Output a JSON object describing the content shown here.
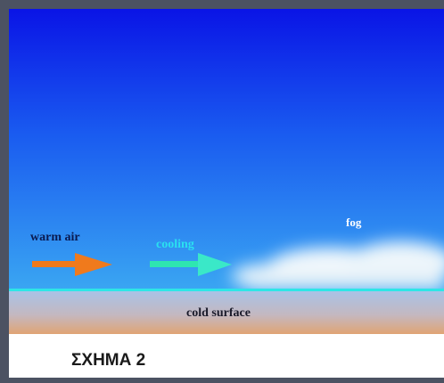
{
  "labels": {
    "warm_air": "warm air",
    "cooling": "cooling",
    "fog": "fog",
    "cold_surface": "cold surface"
  },
  "caption": "ΣΧΗΜΑ 2"
}
